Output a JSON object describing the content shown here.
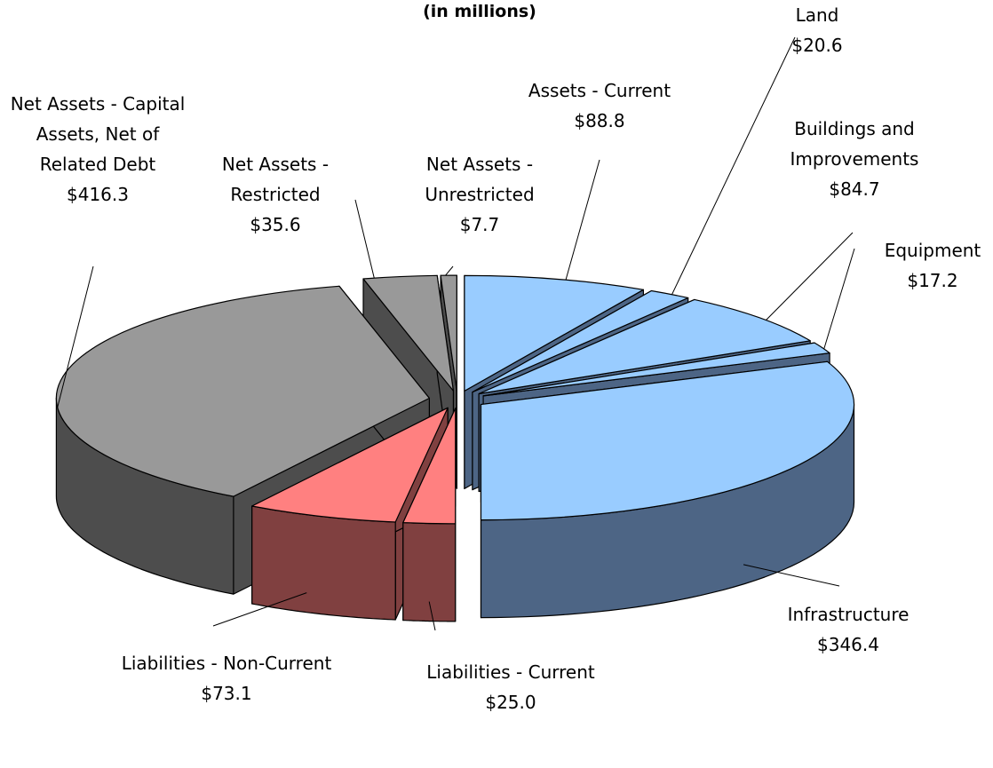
{
  "chart_data": {
    "type": "pie3d",
    "subtitle": "(in millions)",
    "categories": [
      "Assets - Current",
      "Land",
      "Buildings and Improvements",
      "Equipment",
      "Infrastructure",
      "Liabilities - Current",
      "Liabilities - Non-Current",
      "Net Assets - Capital Assets, Net of Related Debt",
      "Net Assets - Restricted",
      "Net Assets - Unrestricted"
    ],
    "values": [
      88.8,
      20.6,
      84.7,
      17.2,
      346.4,
      25.0,
      73.1,
      416.3,
      35.6,
      7.7
    ],
    "value_labels": [
      "$88.8",
      "$20.6",
      "$84.7",
      "$17.2",
      "$346.4",
      "$25.0",
      "$73.1",
      "$416.3",
      "$35.6",
      "$7.7"
    ],
    "colors": [
      "#99ccff",
      "#99ccff",
      "#99ccff",
      "#99ccff",
      "#99ccff",
      "#ff8080",
      "#ff8080",
      "#999999",
      "#999999",
      "#999999"
    ],
    "side_colors": [
      "#4d6585",
      "#4d6585",
      "#4d6585",
      "#4d6585",
      "#4d6585",
      "#804040",
      "#804040",
      "#4d4d4d",
      "#4d4d4d",
      "#4d4d4d"
    ]
  }
}
